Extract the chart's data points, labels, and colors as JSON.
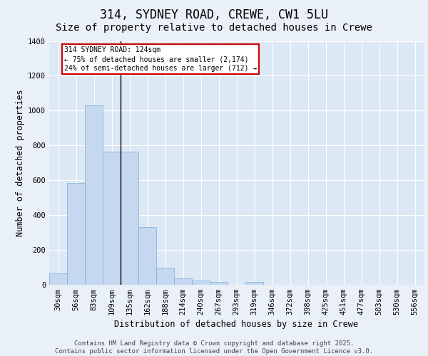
{
  "title_line1": "314, SYDNEY ROAD, CREWE, CW1 5LU",
  "title_line2": "Size of property relative to detached houses in Crewe",
  "xlabel": "Distribution of detached houses by size in Crewe",
  "ylabel": "Number of detached properties",
  "bar_color": "#c5d8f0",
  "bar_edge_color": "#7aafd4",
  "background_color": "#dde8f5",
  "fig_background_color": "#eaf0f8",
  "grid_color": "#ffffff",
  "categories": [
    "30sqm",
    "56sqm",
    "83sqm",
    "109sqm",
    "135sqm",
    "162sqm",
    "188sqm",
    "214sqm",
    "240sqm",
    "267sqm",
    "293sqm",
    "319sqm",
    "346sqm",
    "372sqm",
    "398sqm",
    "425sqm",
    "451sqm",
    "477sqm",
    "503sqm",
    "530sqm",
    "556sqm"
  ],
  "values": [
    65,
    585,
    1030,
    765,
    765,
    330,
    100,
    38,
    25,
    15,
    0,
    15,
    0,
    0,
    0,
    0,
    0,
    0,
    0,
    0,
    0
  ],
  "ylim": [
    0,
    1400
  ],
  "yticks": [
    0,
    200,
    400,
    600,
    800,
    1000,
    1200,
    1400
  ],
  "annotation_text": "314 SYDNEY ROAD: 124sqm\n← 75% of detached houses are smaller (2,174)\n24% of semi-detached houses are larger (712) →",
  "vline_x": 3.5,
  "box_edge_color": "#cc0000",
  "footer_line1": "Contains HM Land Registry data © Crown copyright and database right 2025.",
  "footer_line2": "Contains public sector information licensed under the Open Government Licence v3.0.",
  "title_fontsize": 12,
  "subtitle_fontsize": 10,
  "label_fontsize": 8.5,
  "tick_fontsize": 7.5,
  "footer_fontsize": 6.5,
  "ann_fontsize": 7
}
